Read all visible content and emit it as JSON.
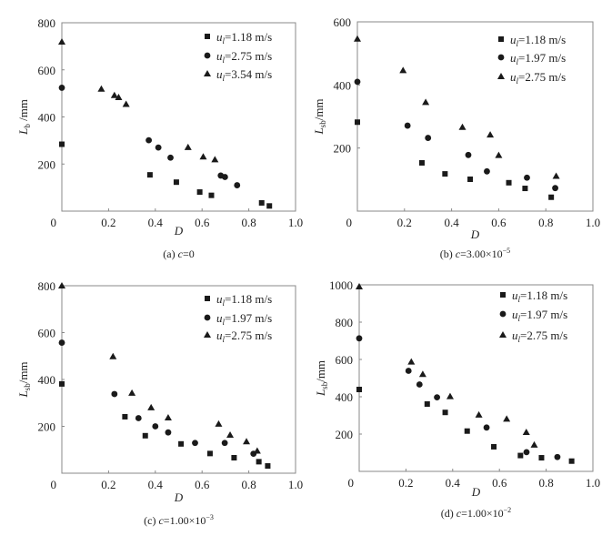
{
  "chart_data": [
    {
      "type": "scatter",
      "caption": "(a) c=0",
      "caption_prefix": "(a) ",
      "caption_var": "c",
      "caption_value": "=0",
      "xlabel": "D",
      "ylabel_main": "L",
      "ylabel_sub": "b",
      "ylabel_unit": " /mm",
      "xlim": [
        0,
        1.0
      ],
      "ylim": [
        0,
        800
      ],
      "xticks": [
        "0.2",
        "0.4",
        "0.6",
        "0.8",
        "1.0"
      ],
      "yticks": [
        "0",
        "200",
        "400",
        "600",
        "800"
      ],
      "origin_label": "0",
      "legend_position": "top-right",
      "series": [
        {
          "name": "ul=1.18 m/s",
          "label_value": "=1.18 m/s",
          "marker": "square",
          "x": [
            0,
            0.377,
            0.49,
            0.59,
            0.64,
            0.855,
            0.888
          ],
          "y": [
            284,
            154,
            123,
            81,
            67,
            35,
            22
          ]
        },
        {
          "name": "ul=2.75 m/s",
          "label_value": "=2.75 m/s",
          "marker": "circle",
          "x": [
            0,
            0.372,
            0.413,
            0.465,
            0.68,
            0.698,
            0.75
          ],
          "y": [
            524,
            301,
            270,
            227,
            151,
            145,
            110
          ]
        },
        {
          "name": "ul=3.54 m/s",
          "label_value": "=3.54 m/s",
          "marker": "triangle",
          "x": [
            0,
            0.169,
            0.225,
            0.243,
            0.275,
            0.54,
            0.605,
            0.655
          ],
          "y": [
            719,
            519,
            492,
            483,
            454,
            271,
            231,
            219
          ]
        }
      ]
    },
    {
      "type": "scatter",
      "caption": "(b) c=3.00×10−5",
      "caption_prefix": "(b) ",
      "caption_var": "c",
      "caption_value": "=3.00×10",
      "caption_exp": "−5",
      "xlabel": "D",
      "ylabel_main": "L",
      "ylabel_sub": "sb",
      "ylabel_unit": "/mm",
      "xlim": [
        0,
        1.0
      ],
      "ylim": [
        0,
        600
      ],
      "xticks": [
        "0.2",
        "0.4",
        "0.6",
        "0.8",
        "1.0"
      ],
      "yticks": [
        "0",
        "200",
        "400",
        "600"
      ],
      "origin_label": "0",
      "legend_position": "top-right",
      "series": [
        {
          "name": "ul=1.18 m/s",
          "label_value": "=1.18 m/s",
          "marker": "square",
          "x": [
            0,
            0.274,
            0.372,
            0.479,
            0.643,
            0.712,
            0.823
          ],
          "y": [
            282,
            153,
            118,
            101,
            90,
            72,
            44
          ]
        },
        {
          "name": "ul=1.97 m/s",
          "label_value": "=1.97 m/s",
          "marker": "circle",
          "x": [
            0,
            0.213,
            0.3,
            0.471,
            0.55,
            0.72,
            0.84
          ],
          "y": [
            410,
            271,
            232,
            178,
            126,
            106,
            73
          ]
        },
        {
          "name": "ul=2.75 m/s",
          "label_value": "=2.75 m/s",
          "marker": "triangle",
          "x": [
            0,
            0.194,
            0.29,
            0.446,
            0.564,
            0.6,
            0.844
          ],
          "y": [
            546,
            446,
            345,
            266,
            242,
            177,
            111
          ]
        }
      ]
    },
    {
      "type": "scatter",
      "caption": "(c) c=1.00×10−3",
      "caption_prefix": "(c) ",
      "caption_var": "c",
      "caption_value": "=1.00×10",
      "caption_exp": "−3",
      "xlabel": "D",
      "ylabel_main": "L",
      "ylabel_sub": "sb",
      "ylabel_unit": "/mm",
      "xlim": [
        0,
        1.0
      ],
      "ylim": [
        0,
        800
      ],
      "xticks": [
        "0.2",
        "0.4",
        "0.6",
        "0.8",
        "1.0"
      ],
      "yticks": [
        "0",
        "200",
        "400",
        "600",
        "800"
      ],
      "origin_label": "0",
      "legend_position": "top-right",
      "series": [
        {
          "name": "ul=1.18 m/s",
          "label_value": "=1.18 m/s",
          "marker": "square",
          "x": [
            0,
            0.27,
            0.357,
            0.51,
            0.634,
            0.737,
            0.843,
            0.881
          ],
          "y": [
            381,
            241,
            160,
            125,
            84,
            66,
            49,
            31
          ]
        },
        {
          "name": "ul=1.97 m/s",
          "label_value": "=1.97 m/s",
          "marker": "circle",
          "x": [
            0,
            0.225,
            0.328,
            0.4,
            0.455,
            0.57,
            0.697,
            0.82
          ],
          "y": [
            557,
            338,
            235,
            200,
            174,
            129,
            129,
            83
          ]
        },
        {
          "name": "ul=2.75 m/s",
          "label_value": "=2.75 m/s",
          "marker": "triangle",
          "x": [
            0,
            0.219,
            0.3,
            0.382,
            0.455,
            0.671,
            0.72,
            0.79,
            0.836
          ],
          "y": [
            800,
            498,
            342,
            280,
            237,
            210,
            163,
            135,
            95
          ]
        }
      ]
    },
    {
      "type": "scatter",
      "caption": "(d) c=1.00×10−2",
      "caption_prefix": "(d) ",
      "caption_var": "c",
      "caption_value": "=1.00×10",
      "caption_exp": "−2",
      "xlabel": "D",
      "ylabel_main": "L",
      "ylabel_sub": "sb",
      "ylabel_unit": "/mm",
      "xlim": [
        0,
        1.0
      ],
      "ylim": [
        0,
        1000
      ],
      "xticks": [
        "0.2",
        "0.4",
        "0.6",
        "0.8",
        "1.0"
      ],
      "yticks": [
        "0",
        "200",
        "400",
        "600",
        "800",
        "1000"
      ],
      "origin_label": "0",
      "legend_position": "top-right",
      "series": [
        {
          "name": "ul=1.18 m/s",
          "label_value": "=1.18 m/s",
          "marker": "square",
          "x": [
            0,
            0.291,
            0.368,
            0.462,
            0.576,
            0.69,
            0.78,
            0.909
          ],
          "y": [
            439,
            361,
            316,
            216,
            132,
            85,
            73,
            55
          ]
        },
        {
          "name": "ul=1.97 m/s",
          "label_value": "=1.97 m/s",
          "marker": "circle",
          "x": [
            0,
            0.211,
            0.258,
            0.333,
            0.545,
            0.716,
            0.848
          ],
          "y": [
            713,
            539,
            466,
            397,
            235,
            103,
            77
          ]
        },
        {
          "name": "ul=2.75 m/s",
          "label_value": "=2.75 m/s",
          "marker": "triangle",
          "x": [
            0,
            0.223,
            0.272,
            0.389,
            0.512,
            0.631,
            0.715,
            0.749
          ],
          "y": [
            990,
            587,
            521,
            402,
            303,
            281,
            210,
            142
          ]
        }
      ]
    }
  ],
  "legend_symbol": "u",
  "legend_subscript": "l",
  "colors": {
    "marker": "#1a1a1a",
    "axis": "#888888",
    "text": "#222222"
  }
}
